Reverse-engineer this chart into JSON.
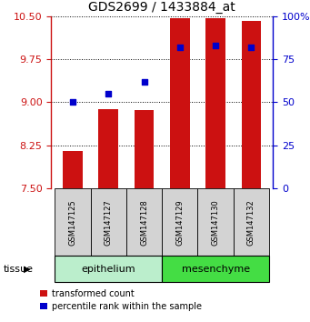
{
  "title": "GDS2699 / 1433884_at",
  "samples": [
    "GSM147125",
    "GSM147127",
    "GSM147128",
    "GSM147129",
    "GSM147130",
    "GSM147132"
  ],
  "bar_values": [
    8.15,
    8.88,
    8.87,
    10.47,
    10.47,
    10.42
  ],
  "percentile_values": [
    50,
    55,
    62,
    82,
    83,
    82
  ],
  "bar_color": "#CC1111",
  "percentile_color": "#0000CC",
  "ylim_left": [
    7.5,
    10.5
  ],
  "ylim_right": [
    0,
    100
  ],
  "yticks_left": [
    7.5,
    8.25,
    9.0,
    9.75,
    10.5
  ],
  "yticks_right": [
    0,
    25,
    50,
    75,
    100
  ],
  "ytick_labels_right": [
    "0",
    "25",
    "50",
    "75",
    "100%"
  ],
  "epi_color": "#BBEECC",
  "mes_color": "#44DD44",
  "sample_box_color": "#D3D3D3",
  "bar_width": 0.55,
  "legend_labels": [
    "transformed count",
    "percentile rank within the sample"
  ],
  "percentile_marker_size": 25
}
